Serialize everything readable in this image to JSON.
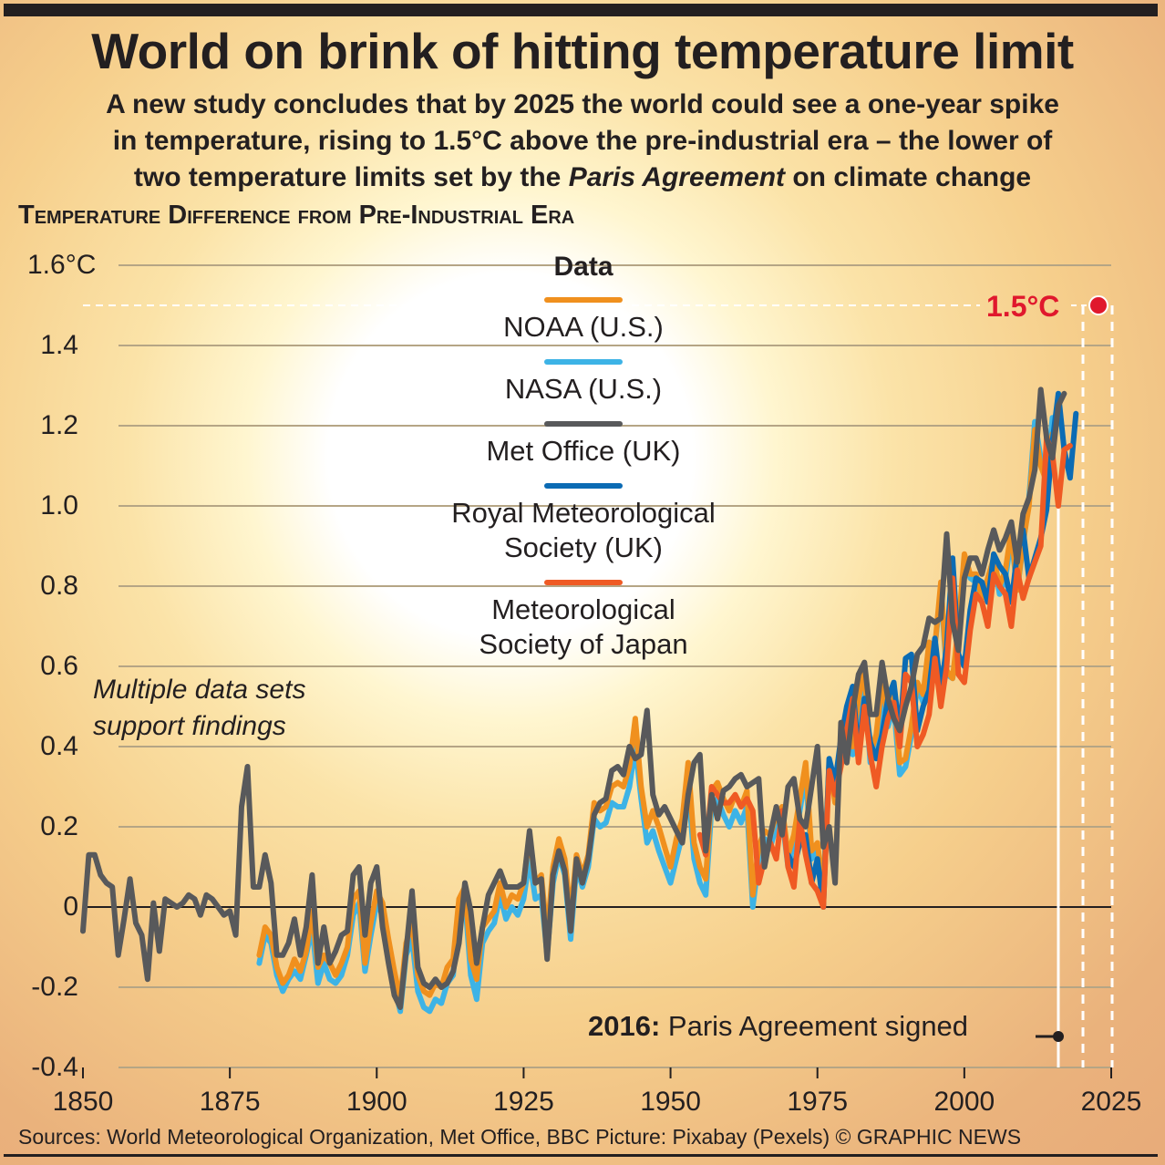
{
  "header": {
    "title": "World on brink of hitting temperature limit",
    "subtitle_1": "A new study concludes that by 2025 the world could see a one-year spike",
    "subtitle_2": "in temperature, rising to 1.5°C above the pre-industrial era – the lower of",
    "subtitle_3a": "two temperature limits set by the ",
    "subtitle_3b": "Paris Agreement",
    "subtitle_3c": " on climate change"
  },
  "annotations": {
    "multiple_1": "Multiple data sets",
    "multiple_2": "support findings",
    "paris_year": "2016:",
    "paris_text": " Paris Agreement signed",
    "limit_label": "1.5°C"
  },
  "footer": {
    "sources": "Sources: World Meteorological Organization, Met Office, BBC  Picture: Pixabay (Pexels)  © GRAPHIC NEWS"
  },
  "legend": {
    "title": "Data"
  },
  "chart_data": {
    "type": "line",
    "title": "Temperature Difference from Pre-Industrial Era",
    "xlabel": "",
    "ylabel": "°C",
    "xlim": [
      1850,
      2025
    ],
    "ylim": [
      -0.4,
      1.6
    ],
    "x_ticks": [
      "1850",
      "1875",
      "1900",
      "1925",
      "1950",
      "1975",
      "2000",
      "2025"
    ],
    "y_ticks": [
      "1.6°C",
      "1.4",
      "1.2",
      "1.0",
      "0.8",
      "0.6",
      "0.4",
      "0.2",
      "0",
      "-0.2",
      "-0.4"
    ],
    "y_tick_values": [
      1.6,
      1.4,
      1.2,
      1.0,
      0.8,
      0.6,
      0.4,
      0.2,
      0,
      -0.2,
      -0.4
    ],
    "grid": true,
    "reference_lines": [
      {
        "label": "1.5°C",
        "value": 1.5,
        "target_year": 2025,
        "color": "#e0182d"
      },
      {
        "label": "2016: Paris Agreement signed",
        "year": 2016
      }
    ],
    "series": [
      {
        "name": "NOAA (U.S.)",
        "color": "#f0901e",
        "start": 1880,
        "values": [
          -0.12,
          -0.05,
          -0.07,
          -0.15,
          -0.19,
          -0.17,
          -0.13,
          -0.16,
          -0.11,
          -0.01,
          -0.15,
          -0.12,
          -0.14,
          -0.17,
          -0.14,
          -0.1,
          0.02,
          0.04,
          -0.14,
          -0.04,
          0.04,
          0.01,
          -0.08,
          -0.16,
          -0.23,
          -0.09,
          -0.04,
          -0.17,
          -0.21,
          -0.22,
          -0.19,
          -0.2,
          -0.15,
          -0.13,
          0.02,
          0.05,
          -0.13,
          -0.18,
          -0.05,
          -0.03,
          -0.01,
          0.06,
          0.0,
          0.03,
          0.02,
          0.06,
          0.18,
          0.06,
          0.08,
          -0.07,
          0.1,
          0.17,
          0.12,
          -0.02,
          0.13,
          0.08,
          0.13,
          0.26,
          0.24,
          0.25,
          0.3,
          0.31,
          0.3,
          0.35,
          0.47,
          0.3,
          0.2,
          0.24,
          0.2,
          0.15,
          0.1,
          0.17,
          0.22,
          0.36,
          0.16,
          0.1,
          0.07,
          0.29,
          0.31,
          0.27,
          0.24,
          0.28,
          0.25,
          0.29,
          0.03,
          0.15,
          0.19,
          0.18,
          0.23,
          0.25,
          0.13,
          0.18,
          0.27,
          0.36,
          0.14,
          0.16,
          0.04,
          0.36,
          0.26,
          0.4,
          0.46,
          0.4,
          0.52,
          0.59,
          0.38,
          0.43,
          0.56,
          0.47,
          0.53,
          0.36,
          0.37,
          0.45,
          0.56,
          0.53,
          0.66,
          0.65,
          0.81,
          0.59,
          0.57,
          0.7,
          0.88,
          0.83,
          0.83,
          0.77,
          0.82,
          0.87,
          0.8,
          0.84,
          0.94,
          0.79,
          0.91,
          1.0,
          1.19,
          1.1,
          1.06,
          1.18
        ]
      },
      {
        "name": "NASA (U.S.)",
        "color": "#3db3e6",
        "start": 1880,
        "values": [
          -0.14,
          -0.07,
          -0.09,
          -0.17,
          -0.21,
          -0.18,
          -0.16,
          -0.18,
          -0.12,
          -0.05,
          -0.19,
          -0.14,
          -0.18,
          -0.19,
          -0.17,
          -0.12,
          -0.02,
          0.01,
          -0.16,
          -0.07,
          0.01,
          -0.02,
          -0.12,
          -0.2,
          -0.26,
          -0.12,
          -0.08,
          -0.21,
          -0.25,
          -0.26,
          -0.23,
          -0.24,
          -0.19,
          -0.17,
          -0.02,
          0.02,
          -0.17,
          -0.23,
          -0.09,
          -0.06,
          -0.04,
          0.03,
          -0.03,
          0.0,
          -0.02,
          0.02,
          0.12,
          0.02,
          0.03,
          -0.12,
          0.06,
          0.13,
          0.08,
          -0.08,
          0.1,
          0.05,
          0.1,
          0.22,
          0.2,
          0.21,
          0.26,
          0.25,
          0.25,
          0.3,
          0.4,
          0.27,
          0.16,
          0.19,
          0.14,
          0.1,
          0.06,
          0.12,
          0.18,
          0.3,
          0.12,
          0.06,
          0.03,
          0.25,
          0.27,
          0.23,
          0.2,
          0.24,
          0.21,
          0.25,
          0.0,
          0.12,
          0.17,
          0.15,
          0.2,
          0.22,
          0.1,
          0.16,
          0.24,
          0.33,
          0.12,
          0.14,
          0.05,
          0.35,
          0.27,
          0.39,
          0.46,
          0.38,
          0.5,
          0.56,
          0.36,
          0.4,
          0.53,
          0.45,
          0.5,
          0.33,
          0.35,
          0.43,
          0.55,
          0.51,
          0.66,
          0.65,
          0.79,
          0.58,
          0.57,
          0.68,
          0.86,
          0.82,
          0.81,
          0.77,
          0.82,
          0.87,
          0.78,
          0.82,
          0.92,
          0.79,
          0.9,
          1.02,
          1.21,
          1.12,
          1.06,
          1.22
        ]
      },
      {
        "name": "Met Office (UK)",
        "color": "#58595b",
        "start": 1850,
        "values": [
          -0.06,
          0.13,
          0.13,
          0.08,
          0.06,
          0.05,
          -0.12,
          -0.03,
          0.07,
          -0.04,
          -0.07,
          -0.18,
          0.01,
          -0.11,
          0.02,
          0.01,
          0.0,
          0.01,
          0.03,
          0.02,
          -0.02,
          0.03,
          0.02,
          0.0,
          -0.02,
          -0.01,
          -0.07,
          0.25,
          0.35,
          0.05,
          0.05,
          0.13,
          0.06,
          -0.12,
          -0.12,
          -0.09,
          -0.03,
          -0.12,
          -0.05,
          0.08,
          -0.14,
          -0.05,
          -0.14,
          -0.11,
          -0.07,
          -0.06,
          0.08,
          0.1,
          -0.07,
          0.06,
          0.1,
          -0.05,
          -0.14,
          -0.22,
          -0.25,
          -0.11,
          0.04,
          -0.15,
          -0.19,
          -0.2,
          -0.18,
          -0.2,
          -0.19,
          -0.16,
          -0.09,
          0.06,
          -0.01,
          -0.14,
          -0.05,
          0.03,
          0.06,
          0.09,
          0.05,
          0.05,
          0.05,
          0.06,
          0.19,
          0.06,
          0.07,
          -0.13,
          0.08,
          0.14,
          0.09,
          -0.06,
          0.12,
          0.06,
          0.12,
          0.23,
          0.26,
          0.27,
          0.34,
          0.35,
          0.33,
          0.4,
          0.37,
          0.38,
          0.49,
          0.28,
          0.23,
          0.25,
          0.22,
          0.19,
          0.16,
          0.28,
          0.36,
          0.38,
          0.14,
          0.28,
          0.22,
          0.29,
          0.3,
          0.32,
          0.33,
          0.3,
          0.31,
          0.32,
          0.1,
          0.18,
          0.25,
          0.18,
          0.3,
          0.32,
          0.22,
          0.2,
          0.3,
          0.4,
          0.15,
          0.2,
          0.06,
          0.46,
          0.36,
          0.49,
          0.58,
          0.61,
          0.48,
          0.48,
          0.61,
          0.52,
          0.47,
          0.44,
          0.5,
          0.55,
          0.63,
          0.65,
          0.72,
          0.71,
          0.72,
          0.93,
          0.71,
          0.64,
          0.82,
          0.87,
          0.87,
          0.83,
          0.89,
          0.94,
          0.89,
          0.92,
          0.96,
          0.86,
          0.98,
          1.02,
          1.09,
          1.29,
          1.17,
          1.12,
          1.25,
          1.28
        ]
      },
      {
        "name": "Royal Meteorological Society (UK)",
        "color": "#0b6bb4",
        "start": 1970,
        "values": [
          0.13,
          0.1,
          0.16,
          0.18,
          0.06,
          0.12,
          0.0,
          0.37,
          0.31,
          0.42,
          0.5,
          0.55,
          0.38,
          0.52,
          0.41,
          0.37,
          0.43,
          0.52,
          0.56,
          0.43,
          0.62,
          0.63,
          0.44,
          0.5,
          0.54,
          0.67,
          0.54,
          0.65,
          0.87,
          0.63,
          0.6,
          0.74,
          0.82,
          0.81,
          0.76,
          0.88,
          0.85,
          0.83,
          0.76,
          0.88,
          0.94,
          0.82,
          0.87,
          0.92,
          0.99,
          1.16,
          1.28,
          1.14,
          1.07,
          1.23
        ]
      },
      {
        "name": "Meteorological Society of Japan",
        "color": "#ef5a24",
        "start": 1955,
        "values": [
          0.18,
          0.13,
          0.3,
          0.28,
          0.26,
          0.26,
          0.28,
          0.25,
          0.27,
          0.24,
          0.06,
          0.12,
          0.16,
          0.12,
          0.24,
          0.1,
          0.05,
          0.22,
          0.13,
          0.06,
          0.04,
          0.0,
          0.34,
          0.28,
          0.35,
          0.44,
          0.52,
          0.36,
          0.5,
          0.38,
          0.3,
          0.4,
          0.47,
          0.51,
          0.4,
          0.58,
          0.56,
          0.4,
          0.43,
          0.48,
          0.62,
          0.5,
          0.6,
          0.82,
          0.58,
          0.56,
          0.69,
          0.78,
          0.76,
          0.7,
          0.83,
          0.8,
          0.78,
          0.7,
          0.84,
          0.77,
          0.82,
          0.86,
          0.9,
          1.17,
          1.13,
          1.0,
          1.14,
          1.15
        ]
      }
    ]
  }
}
